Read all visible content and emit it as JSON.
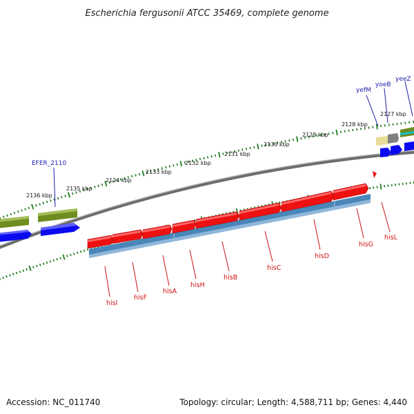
{
  "title": "Escherichia fergusonii ATCC 35469, complete genome",
  "accession": "Accession: NC_011740",
  "summary": "Topology: circular; Length: 4,588,711 bp; Genes: 4,440",
  "colors": {
    "backbone": "#808080",
    "forward_cds": "#ee1111",
    "operon_track": "#4a86b8",
    "reverse_cds": "#0a0af0",
    "other_cds": "#6e8c20",
    "tick": "#1e7a1e",
    "upstream_label": "#1a1aa8",
    "his_label": "#cc1111"
  },
  "scale_labels": [
    "2136 kbp",
    "2135 kbp",
    "2134 kbp",
    "2133 kbp",
    "2132 kbp",
    "2131 kbp",
    "2130 kbp",
    "2129 kbp",
    "2128 kbp",
    "2127 kbp"
  ],
  "upstream_genes": [
    "EFER_2110",
    "yefM",
    "yoeB",
    "yeeZ"
  ],
  "his_genes": [
    "hisI",
    "hisF",
    "hisA",
    "hisH",
    "hisB",
    "hisC",
    "hisD",
    "hisG",
    "hisL"
  ]
}
